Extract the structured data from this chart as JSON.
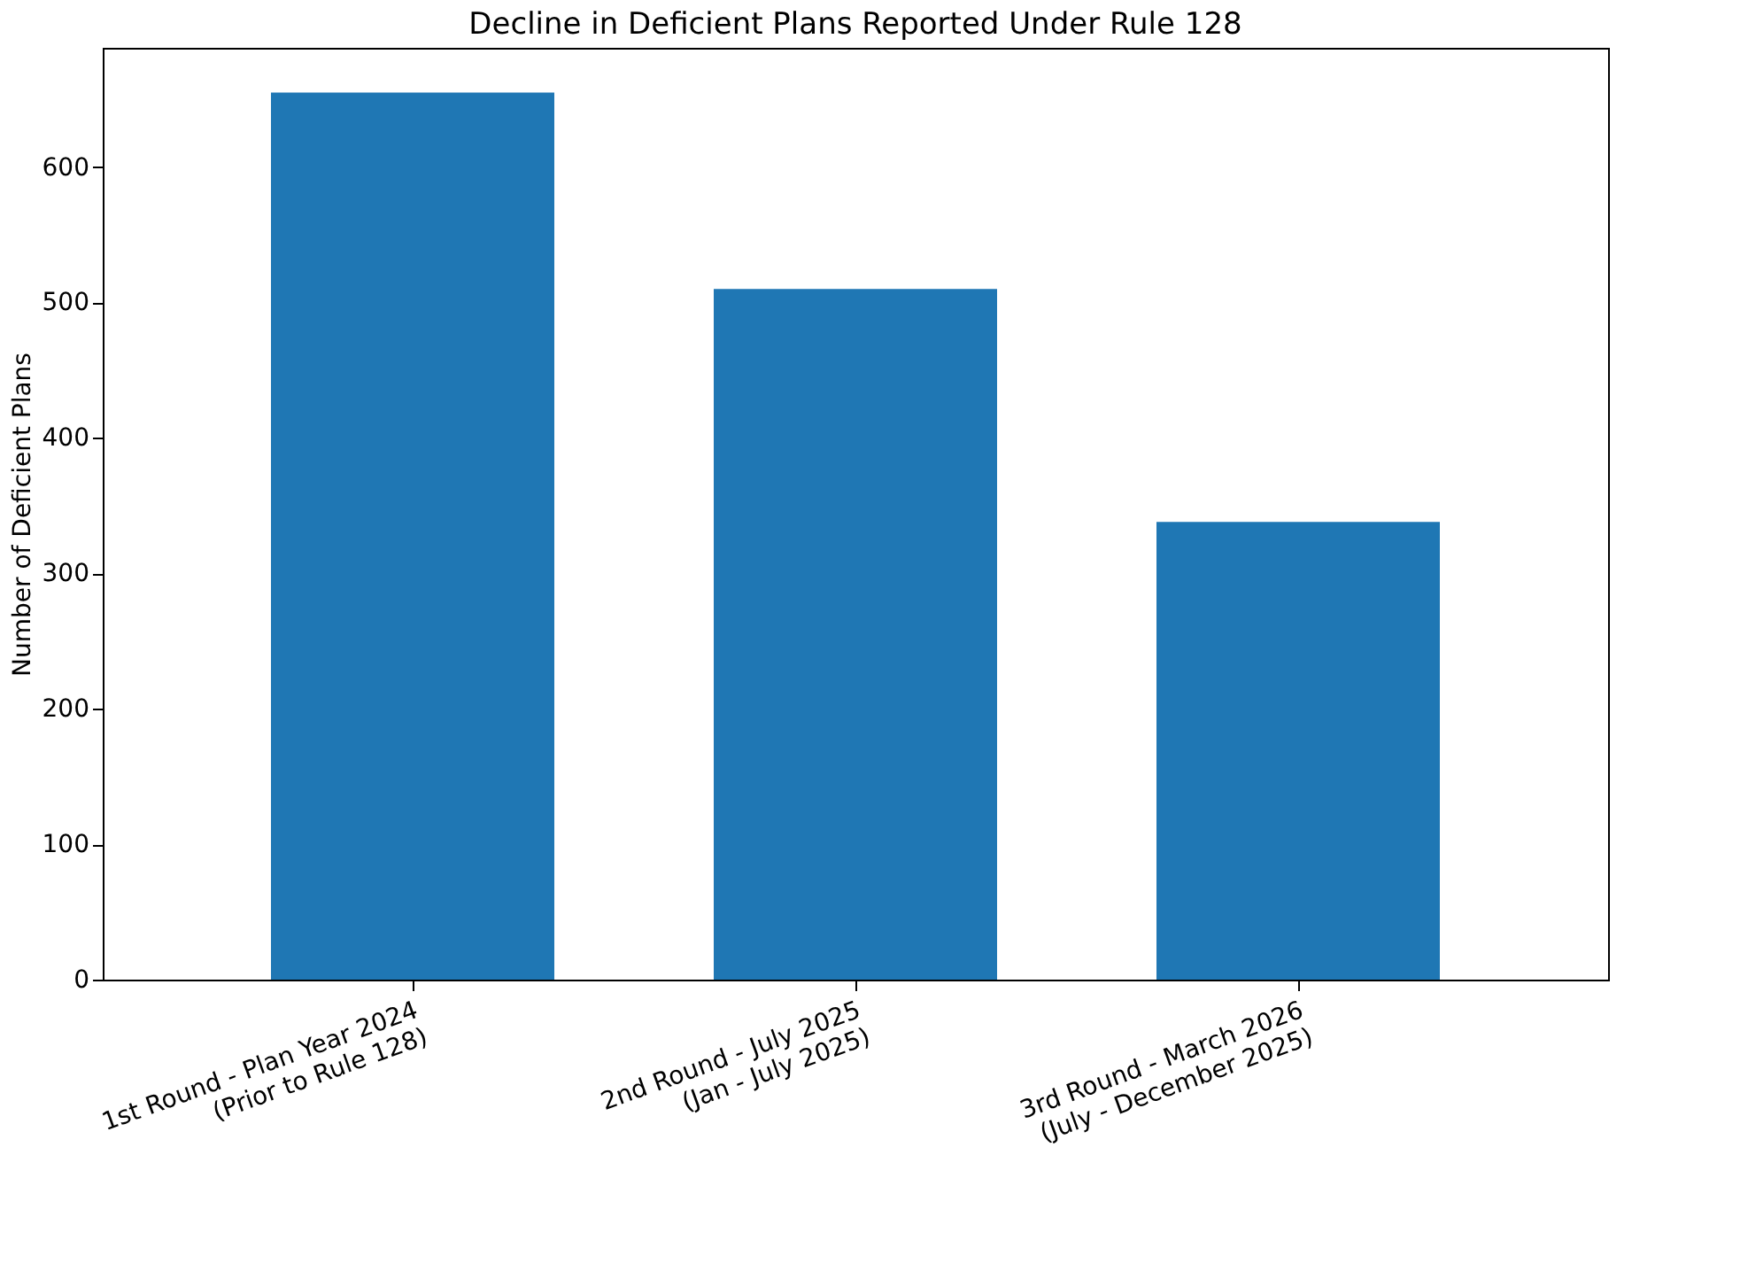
{
  "chart_data": {
    "type": "bar",
    "title": "Decline in Deficient Plans Reported Under Rule 128",
    "ylabel": "Number of Deficient Plans",
    "categories": [
      "1st Round - Plan Year 2024\n(Prior to Rule 128)",
      "2nd Round - July 2025\n(Jan - July 2025)",
      "3rd Round - March 2026\n(July - December 2025)"
    ],
    "values": [
      655,
      510,
      338
    ],
    "color": "#1f77b4",
    "ylim": [
      0,
      688
    ],
    "yticks": [
      0,
      100,
      200,
      300,
      400,
      500,
      600
    ],
    "grid": false
  }
}
